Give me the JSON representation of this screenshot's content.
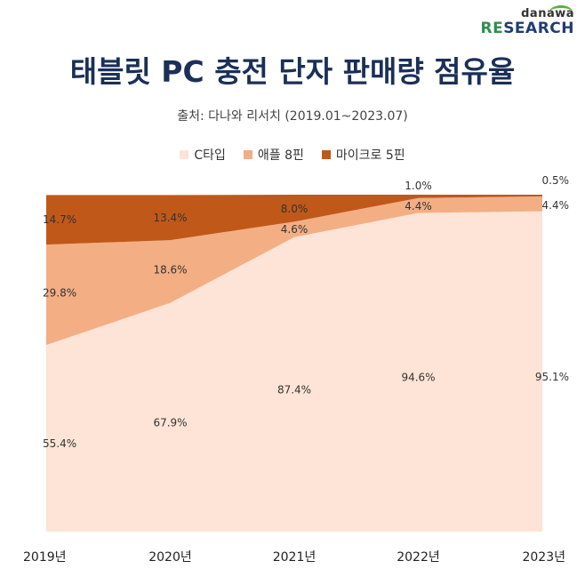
{
  "logo": {
    "top": "danawa",
    "bottom_accent": "RE",
    "bottom_rest": "SEARCH"
  },
  "header": {
    "title": "태블릿 PC 충전 단자 판매량 점유율",
    "source": "출처: 다나와 리서치 (2019.01~2023.07)"
  },
  "chart_data": {
    "type": "area",
    "stacked": true,
    "categories": [
      "2019년",
      "2020년",
      "2021년",
      "2022년",
      "2023년"
    ],
    "series": [
      {
        "name": "C타입",
        "values": [
          55.4,
          67.9,
          87.4,
          94.6,
          95.1
        ],
        "color": "#fde4d6",
        "labels": [
          "55.4%",
          "67.9%",
          "87.4%",
          "94.6%",
          "95.1%"
        ]
      },
      {
        "name": "애플 8핀",
        "values": [
          29.8,
          18.6,
          4.6,
          4.4,
          4.4
        ],
        "color": "#f3ae84",
        "labels": [
          "29.8%",
          "18.6%",
          "4.6%",
          "4.4%",
          "4.4%"
        ]
      },
      {
        "name": "마이크로 5핀",
        "values": [
          14.7,
          13.4,
          8.0,
          1.0,
          0.5
        ],
        "color": "#c0581a",
        "labels": [
          "14.7%",
          "13.4%",
          "8.0%",
          "1.0%",
          "0.5%"
        ]
      }
    ],
    "ylim": [
      0,
      100
    ],
    "legend_position": "top-center"
  }
}
